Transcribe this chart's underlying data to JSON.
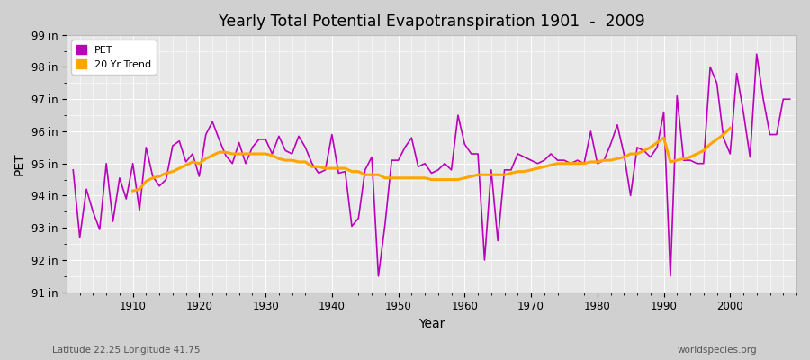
{
  "title": "Yearly Total Potential Evapotranspiration 1901  -  2009",
  "xlabel": "Year",
  "ylabel": "PET",
  "subtitle_left": "Latitude 22.25 Longitude 41.75",
  "subtitle_right": "worldspecies.org",
  "pet_color": "#bb00bb",
  "trend_color": "#ffa500",
  "fig_bg_color": "#d0d0d0",
  "plot_bg_color": "#e8e8e8",
  "ylim": [
    91,
    99
  ],
  "yticks": [
    91,
    92,
    93,
    94,
    95,
    96,
    97,
    98,
    99
  ],
  "ytick_labels": [
    "91 in",
    "92 in",
    "93 in",
    "94 in",
    "95 in",
    "96 in",
    "97 in",
    "98 in",
    "99 in"
  ],
  "years": [
    1901,
    1902,
    1903,
    1904,
    1905,
    1906,
    1907,
    1908,
    1909,
    1910,
    1911,
    1912,
    1913,
    1914,
    1915,
    1916,
    1917,
    1918,
    1919,
    1920,
    1921,
    1922,
    1923,
    1924,
    1925,
    1926,
    1927,
    1928,
    1929,
    1930,
    1931,
    1932,
    1933,
    1934,
    1935,
    1936,
    1937,
    1938,
    1939,
    1940,
    1941,
    1942,
    1943,
    1944,
    1945,
    1946,
    1947,
    1948,
    1949,
    1950,
    1951,
    1952,
    1953,
    1954,
    1955,
    1956,
    1957,
    1958,
    1959,
    1960,
    1961,
    1962,
    1963,
    1964,
    1965,
    1966,
    1967,
    1968,
    1969,
    1970,
    1971,
    1972,
    1973,
    1974,
    1975,
    1976,
    1977,
    1978,
    1979,
    1980,
    1981,
    1982,
    1983,
    1984,
    1985,
    1986,
    1987,
    1988,
    1989,
    1990,
    1991,
    1992,
    1993,
    1994,
    1995,
    1996,
    1997,
    1998,
    1999,
    2000,
    2001,
    2002,
    2003,
    2004,
    2005,
    2006,
    2007,
    2008,
    2009
  ],
  "pet_values": [
    94.8,
    92.7,
    94.2,
    93.5,
    92.95,
    95.0,
    93.2,
    94.55,
    93.9,
    95.0,
    93.55,
    95.5,
    94.6,
    94.3,
    94.5,
    95.55,
    95.7,
    95.05,
    95.3,
    94.6,
    95.9,
    96.3,
    95.75,
    95.25,
    95.0,
    95.65,
    95.0,
    95.5,
    95.75,
    95.75,
    95.3,
    95.85,
    95.4,
    95.3,
    95.85,
    95.5,
    95.0,
    94.7,
    94.8,
    95.9,
    94.7,
    94.75,
    93.05,
    93.3,
    94.8,
    95.2,
    91.5,
    93.1,
    95.1,
    95.1,
    95.5,
    95.8,
    94.9,
    95.0,
    94.7,
    94.8,
    95.0,
    94.8,
    96.5,
    95.6,
    95.3,
    95.3,
    92.0,
    94.8,
    92.6,
    94.8,
    94.8,
    95.3,
    95.2,
    95.1,
    95.0,
    95.1,
    95.3,
    95.1,
    95.1,
    95.0,
    95.1,
    95.0,
    96.0,
    95.0,
    95.1,
    95.6,
    96.2,
    95.3,
    94.0,
    95.5,
    95.4,
    95.2,
    95.5,
    96.6,
    91.5,
    97.1,
    95.1,
    95.1,
    95.0,
    95.0,
    98.0,
    97.5,
    95.8,
    95.3,
    97.8,
    96.6,
    95.2,
    98.4,
    97.0,
    95.9,
    95.9,
    97.0,
    97.0
  ],
  "trend_values": [
    null,
    null,
    null,
    null,
    null,
    null,
    null,
    null,
    null,
    94.15,
    94.2,
    94.45,
    94.55,
    94.6,
    94.7,
    94.75,
    94.85,
    94.95,
    95.05,
    95.0,
    95.15,
    95.25,
    95.35,
    95.35,
    95.3,
    95.3,
    95.3,
    95.3,
    95.3,
    95.3,
    95.25,
    95.15,
    95.1,
    95.1,
    95.05,
    95.05,
    94.9,
    94.9,
    94.85,
    94.85,
    94.85,
    94.85,
    94.75,
    94.75,
    94.65,
    94.65,
    94.65,
    94.55,
    94.55,
    94.55,
    94.55,
    94.55,
    94.55,
    94.55,
    94.5,
    94.5,
    94.5,
    94.5,
    94.5,
    94.55,
    94.6,
    94.65,
    94.65,
    94.65,
    94.65,
    94.65,
    94.7,
    94.75,
    94.75,
    94.8,
    94.85,
    94.9,
    94.95,
    95.0,
    95.0,
    95.0,
    95.0,
    95.0,
    95.05,
    95.05,
    95.1,
    95.1,
    95.15,
    95.2,
    95.3,
    95.3,
    95.4,
    95.5,
    95.65,
    95.8,
    95.05,
    95.1,
    95.15,
    95.2,
    95.3,
    95.4,
    95.6,
    95.75,
    95.9,
    96.1,
    null,
    null,
    null,
    null,
    null,
    null,
    null,
    null,
    null
  ]
}
